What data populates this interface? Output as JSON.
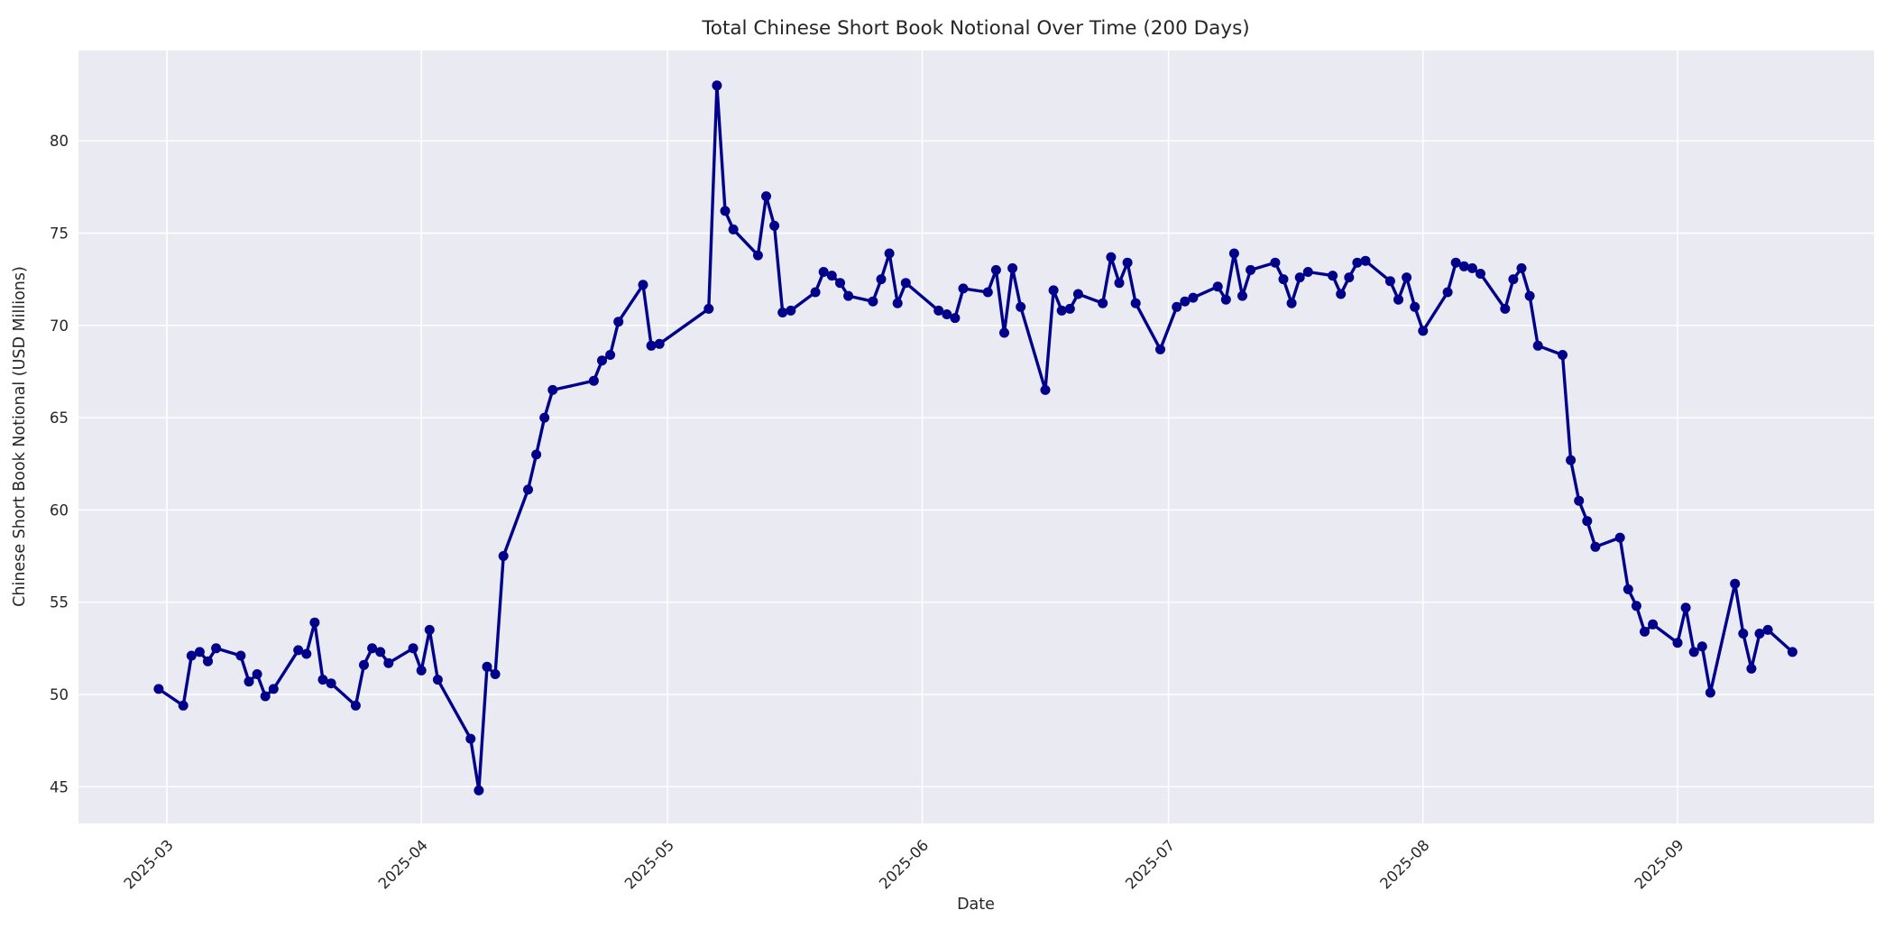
{
  "chart_data": {
    "type": "line",
    "title": "Total Chinese Short Book Notional Over Time (200 Days)",
    "xlabel": "Date",
    "ylabel": "Chinese Short Book Notional (USD Millions)",
    "legend": "none",
    "grid": true,
    "plot_bg_color": "#EAEAF2",
    "grid_color": "#FFFFFF",
    "line_color": "#00008B",
    "marker_color": "#00008B",
    "text_color": "#262626",
    "marker": "circle",
    "y_ticks": [
      45,
      50,
      55,
      60,
      65,
      70,
      75,
      80
    ],
    "x_ticks": [
      {
        "label": "2025-03",
        "date": "2025-03-01"
      },
      {
        "label": "2025-04",
        "date": "2025-04-01"
      },
      {
        "label": "2025-05",
        "date": "2025-05-01"
      },
      {
        "label": "2025-06",
        "date": "2025-06-01"
      },
      {
        "label": "2025-07",
        "date": "2025-07-01"
      },
      {
        "label": "2025-08",
        "date": "2025-08-01"
      },
      {
        "label": "2025-09",
        "date": "2025-09-01"
      }
    ],
    "xlim": [
      "2025-02-18",
      "2025-09-24"
    ],
    "ylim": [
      43.0,
      84.9
    ],
    "series_format": [
      "date",
      "value_usd_millions"
    ],
    "series": [
      [
        "2025-02-28",
        50.3
      ],
      [
        "2025-03-03",
        49.4
      ],
      [
        "2025-03-04",
        52.1
      ],
      [
        "2025-03-05",
        52.3
      ],
      [
        "2025-03-06",
        51.8
      ],
      [
        "2025-03-07",
        52.5
      ],
      [
        "2025-03-10",
        52.1
      ],
      [
        "2025-03-11",
        50.7
      ],
      [
        "2025-03-12",
        51.1
      ],
      [
        "2025-03-13",
        49.9
      ],
      [
        "2025-03-14",
        50.3
      ],
      [
        "2025-03-17",
        52.4
      ],
      [
        "2025-03-18",
        52.2
      ],
      [
        "2025-03-19",
        53.9
      ],
      [
        "2025-03-20",
        50.8
      ],
      [
        "2025-03-21",
        50.6
      ],
      [
        "2025-03-24",
        49.4
      ],
      [
        "2025-03-25",
        51.6
      ],
      [
        "2025-03-26",
        52.5
      ],
      [
        "2025-03-27",
        52.3
      ],
      [
        "2025-03-28",
        51.7
      ],
      [
        "2025-03-31",
        52.5
      ],
      [
        "2025-04-01",
        51.3
      ],
      [
        "2025-04-02",
        53.5
      ],
      [
        "2025-04-03",
        50.8
      ],
      [
        "2025-04-07",
        47.6
      ],
      [
        "2025-04-08",
        44.8
      ],
      [
        "2025-04-09",
        51.5
      ],
      [
        "2025-04-10",
        51.1
      ],
      [
        "2025-04-11",
        57.5
      ],
      [
        "2025-04-14",
        61.1
      ],
      [
        "2025-04-15",
        63.0
      ],
      [
        "2025-04-16",
        65.0
      ],
      [
        "2025-04-17",
        66.5
      ],
      [
        "2025-04-22",
        67.0
      ],
      [
        "2025-04-23",
        68.1
      ],
      [
        "2025-04-24",
        68.4
      ],
      [
        "2025-04-25",
        70.2
      ],
      [
        "2025-04-28",
        72.2
      ],
      [
        "2025-04-29",
        68.9
      ],
      [
        "2025-04-30",
        69.0
      ],
      [
        "2025-05-06",
        70.9
      ],
      [
        "2025-05-07",
        83.0
      ],
      [
        "2025-05-08",
        76.2
      ],
      [
        "2025-05-09",
        75.2
      ],
      [
        "2025-05-12",
        73.8
      ],
      [
        "2025-05-13",
        77.0
      ],
      [
        "2025-05-14",
        75.4
      ],
      [
        "2025-05-15",
        70.7
      ],
      [
        "2025-05-16",
        70.8
      ],
      [
        "2025-05-19",
        71.8
      ],
      [
        "2025-05-20",
        72.9
      ],
      [
        "2025-05-21",
        72.7
      ],
      [
        "2025-05-22",
        72.3
      ],
      [
        "2025-05-23",
        71.6
      ],
      [
        "2025-05-26",
        71.3
      ],
      [
        "2025-05-27",
        72.5
      ],
      [
        "2025-05-28",
        73.9
      ],
      [
        "2025-05-29",
        71.2
      ],
      [
        "2025-05-30",
        72.3
      ],
      [
        "2025-06-03",
        70.8
      ],
      [
        "2025-06-04",
        70.6
      ],
      [
        "2025-06-05",
        70.4
      ],
      [
        "2025-06-06",
        72.0
      ],
      [
        "2025-06-09",
        71.8
      ],
      [
        "2025-06-10",
        73.0
      ],
      [
        "2025-06-11",
        69.6
      ],
      [
        "2025-06-12",
        73.1
      ],
      [
        "2025-06-13",
        71.0
      ],
      [
        "2025-06-16",
        66.5
      ],
      [
        "2025-06-17",
        71.9
      ],
      [
        "2025-06-18",
        70.8
      ],
      [
        "2025-06-19",
        70.9
      ],
      [
        "2025-06-20",
        71.7
      ],
      [
        "2025-06-23",
        71.2
      ],
      [
        "2025-06-24",
        73.7
      ],
      [
        "2025-06-25",
        72.3
      ],
      [
        "2025-06-26",
        73.4
      ],
      [
        "2025-06-27",
        71.2
      ],
      [
        "2025-06-30",
        68.7
      ],
      [
        "2025-07-02",
        71.0
      ],
      [
        "2025-07-03",
        71.3
      ],
      [
        "2025-07-04",
        71.5
      ],
      [
        "2025-07-07",
        72.1
      ],
      [
        "2025-07-08",
        71.4
      ],
      [
        "2025-07-09",
        73.9
      ],
      [
        "2025-07-10",
        71.6
      ],
      [
        "2025-07-11",
        73.0
      ],
      [
        "2025-07-14",
        73.4
      ],
      [
        "2025-07-15",
        72.5
      ],
      [
        "2025-07-16",
        71.2
      ],
      [
        "2025-07-17",
        72.6
      ],
      [
        "2025-07-18",
        72.9
      ],
      [
        "2025-07-21",
        72.7
      ],
      [
        "2025-07-22",
        71.7
      ],
      [
        "2025-07-23",
        72.6
      ],
      [
        "2025-07-24",
        73.4
      ],
      [
        "2025-07-25",
        73.5
      ],
      [
        "2025-07-28",
        72.4
      ],
      [
        "2025-07-29",
        71.4
      ],
      [
        "2025-07-30",
        72.6
      ],
      [
        "2025-07-31",
        71.0
      ],
      [
        "2025-08-01",
        69.7
      ],
      [
        "2025-08-04",
        71.8
      ],
      [
        "2025-08-05",
        73.4
      ],
      [
        "2025-08-06",
        73.2
      ],
      [
        "2025-08-07",
        73.1
      ],
      [
        "2025-08-08",
        72.8
      ],
      [
        "2025-08-11",
        70.9
      ],
      [
        "2025-08-12",
        72.5
      ],
      [
        "2025-08-13",
        73.1
      ],
      [
        "2025-08-14",
        71.6
      ],
      [
        "2025-08-15",
        68.9
      ],
      [
        "2025-08-18",
        68.4
      ],
      [
        "2025-08-19",
        62.7
      ],
      [
        "2025-08-20",
        60.5
      ],
      [
        "2025-08-21",
        59.4
      ],
      [
        "2025-08-22",
        58.0
      ],
      [
        "2025-08-25",
        58.5
      ],
      [
        "2025-08-26",
        55.7
      ],
      [
        "2025-08-27",
        54.8
      ],
      [
        "2025-08-28",
        53.4
      ],
      [
        "2025-08-29",
        53.8
      ],
      [
        "2025-09-01",
        52.8
      ],
      [
        "2025-09-02",
        54.7
      ],
      [
        "2025-09-03",
        52.3
      ],
      [
        "2025-09-04",
        52.6
      ],
      [
        "2025-09-05",
        50.1
      ],
      [
        "2025-09-08",
        56.0
      ],
      [
        "2025-09-09",
        53.3
      ],
      [
        "2025-09-10",
        51.4
      ],
      [
        "2025-09-11",
        53.3
      ],
      [
        "2025-09-12",
        53.5
      ],
      [
        "2025-09-15",
        52.3
      ]
    ]
  }
}
